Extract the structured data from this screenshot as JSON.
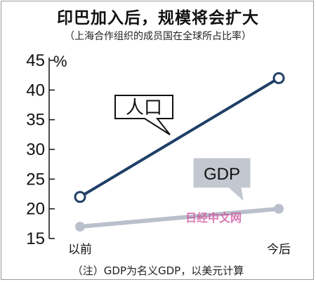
{
  "chart_data": {
    "type": "line",
    "title": "印巴加入后，规模将会扩大",
    "subtitle": "（上海合作组织的成员国在全球所占比率）",
    "ylabel": "%",
    "ylim": [
      15,
      45
    ],
    "yticks": [
      15,
      20,
      25,
      30,
      35,
      40,
      45
    ],
    "categories": [
      "以前",
      "今后"
    ],
    "series": [
      {
        "name": "人口",
        "values": [
          22,
          42
        ],
        "color": "#1f3f66"
      },
      {
        "name": "GDP",
        "values": [
          17,
          20
        ],
        "color": "#b9bfcb"
      }
    ],
    "footnote": "（注）GDP为名义GDP，以美元计算",
    "watermark": "日经中文网",
    "grid": false
  }
}
